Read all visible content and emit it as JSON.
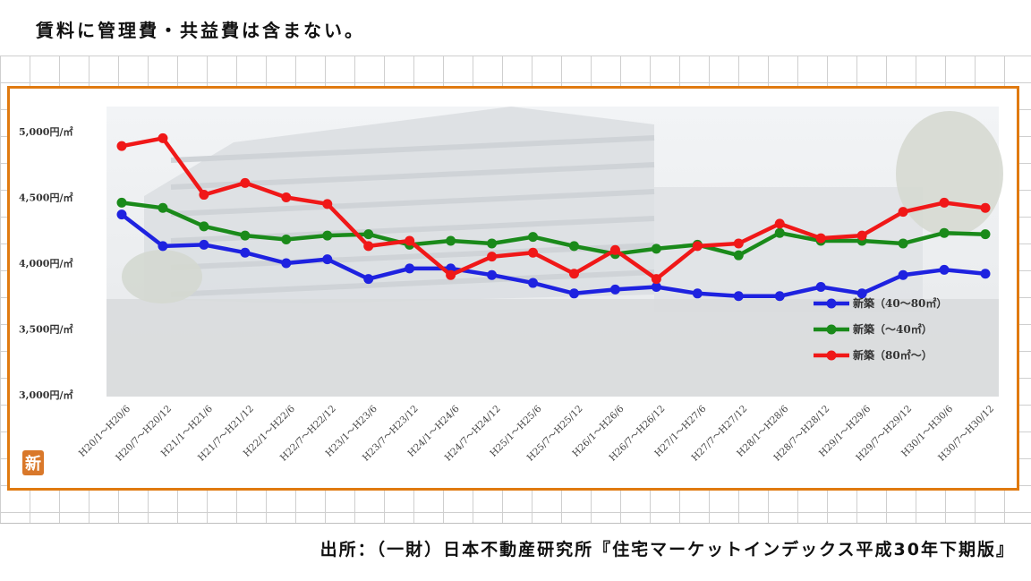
{
  "header": {
    "note": "賃料に管理費・共益費は含まない。"
  },
  "footer": {
    "source": "出所：（一財）日本不動産研究所『住宅マーケットインデックス平成30年下期版』"
  },
  "badge": {
    "label": "新",
    "icon": "shin-logo-icon"
  },
  "chart_data": {
    "type": "line",
    "title": "",
    "xlabel": "",
    "ylabel": "",
    "ylim": [
      3000,
      5000
    ],
    "yticks": [
      {
        "value": 3000,
        "label": "3,000円/㎡"
      },
      {
        "value": 3500,
        "label": "3,500円/㎡"
      },
      {
        "value": 4000,
        "label": "4,000円/㎡"
      },
      {
        "value": 4500,
        "label": "4,500円/㎡"
      },
      {
        "value": 5000,
        "label": "5,000円/㎡"
      }
    ],
    "categories": [
      "H20/1～H20/6",
      "H20/7～H20/12",
      "H21/1～H21/6",
      "H21/7～H21/12",
      "H22/1～H22/6",
      "H22/7～H22/12",
      "H23/1～H23/6",
      "H23/7～H23/12",
      "H24/1～H24/6",
      "H24/7～H24/12",
      "H25/1～H25/6",
      "H25/7～H25/12",
      "H26/1～H26/6",
      "H26/7～H26/12",
      "H27/1～H27/6",
      "H27/7～H27/12",
      "H28/1～H28/6",
      "H28/7～H28/12",
      "H29/1～H29/6",
      "H29/7～H29/12",
      "H30/1～H30/6",
      "H30/7～H30/12"
    ],
    "series": [
      {
        "name": "新築（40～80㎡）",
        "color": "#1e22e0",
        "values": [
          4370,
          4130,
          4140,
          4080,
          4000,
          4030,
          3880,
          3960,
          3960,
          3910,
          3850,
          3770,
          3800,
          3820,
          3770,
          3750,
          3750,
          3820,
          3770,
          3910,
          3950,
          3920
        ]
      },
      {
        "name": "新築（～40㎡）",
        "color": "#1a8a1a",
        "values": [
          4460,
          4420,
          4280,
          4210,
          4180,
          4210,
          4220,
          4140,
          4170,
          4150,
          4200,
          4130,
          4070,
          4110,
          4140,
          4060,
          4230,
          4170,
          4170,
          4150,
          4230,
          4220
        ]
      },
      {
        "name": "新築（80㎡～）",
        "color": "#f01818",
        "values": [
          4890,
          4950,
          4520,
          4610,
          4500,
          4450,
          4130,
          4170,
          3910,
          4050,
          4080,
          3920,
          4100,
          3880,
          4130,
          4150,
          4300,
          4190,
          4210,
          4390,
          4460,
          4420
        ]
      }
    ],
    "legend_position": "bottom-right",
    "grid": false,
    "background": "photo of apartment building"
  }
}
